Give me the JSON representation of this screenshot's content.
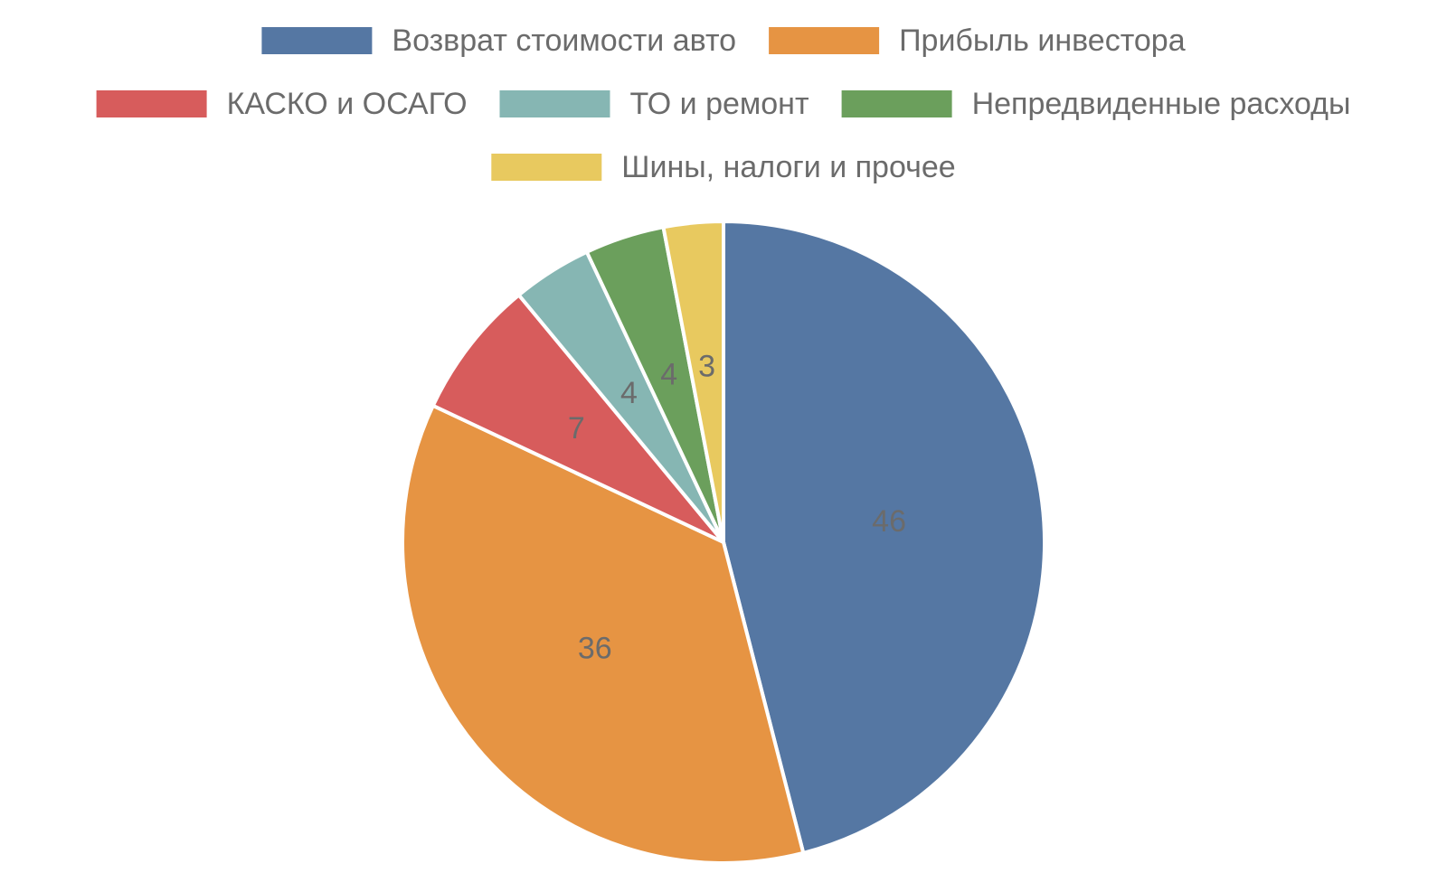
{
  "chart_data": {
    "type": "pie",
    "categories": [
      "Возврат стоимости авто",
      "Прибыль инвестора",
      "КАСКО и ОСАГО",
      "ТО и ремонт",
      "Непредвиденные расходы",
      "Шины, налоги и прочее"
    ],
    "values": [
      46,
      36,
      7,
      4,
      4,
      3
    ],
    "data_labels": [
      "46",
      "36",
      "7",
      "4",
      "4",
      "3"
    ],
    "colors": [
      "#5577a3",
      "#e69443",
      "#d75c5c",
      "#86b6b3",
      "#6b9f5c",
      "#e8c95f"
    ],
    "start_angle_deg": 0,
    "direction": "clockwise",
    "legend_position": "top",
    "title": "",
    "grid": false
  }
}
